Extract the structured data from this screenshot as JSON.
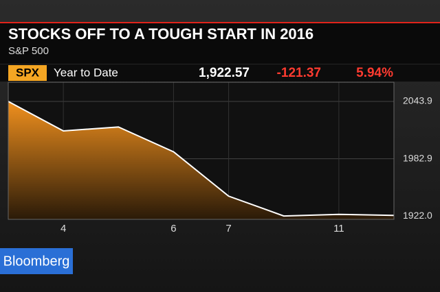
{
  "header": {
    "title": "STOCKS OFF TO A TOUGH START IN 2016",
    "subtitle": "S&P 500",
    "ticker": "SPX",
    "period": "Year to Date",
    "last": "1,922.57",
    "change": "-121.37",
    "change_pct": "5.94%"
  },
  "brand": "Bloomberg",
  "chart_data": {
    "type": "area",
    "categories": [
      null,
      "4",
      null,
      "6",
      "7",
      null,
      "11",
      null
    ],
    "values": [
      2043.9,
      2012.5,
      2016.7,
      1990.3,
      1943.1,
      1922.0,
      1923.7,
      1922.6
    ],
    "color": "#f0901e",
    "line_color": "#ffffff",
    "ylim": [
      1918.4,
      2064.3
    ],
    "yticks": [
      2043.9,
      1982.9,
      {
        "value": 1922.0,
        "label": "1922.0"
      }
    ],
    "grid": true
  }
}
